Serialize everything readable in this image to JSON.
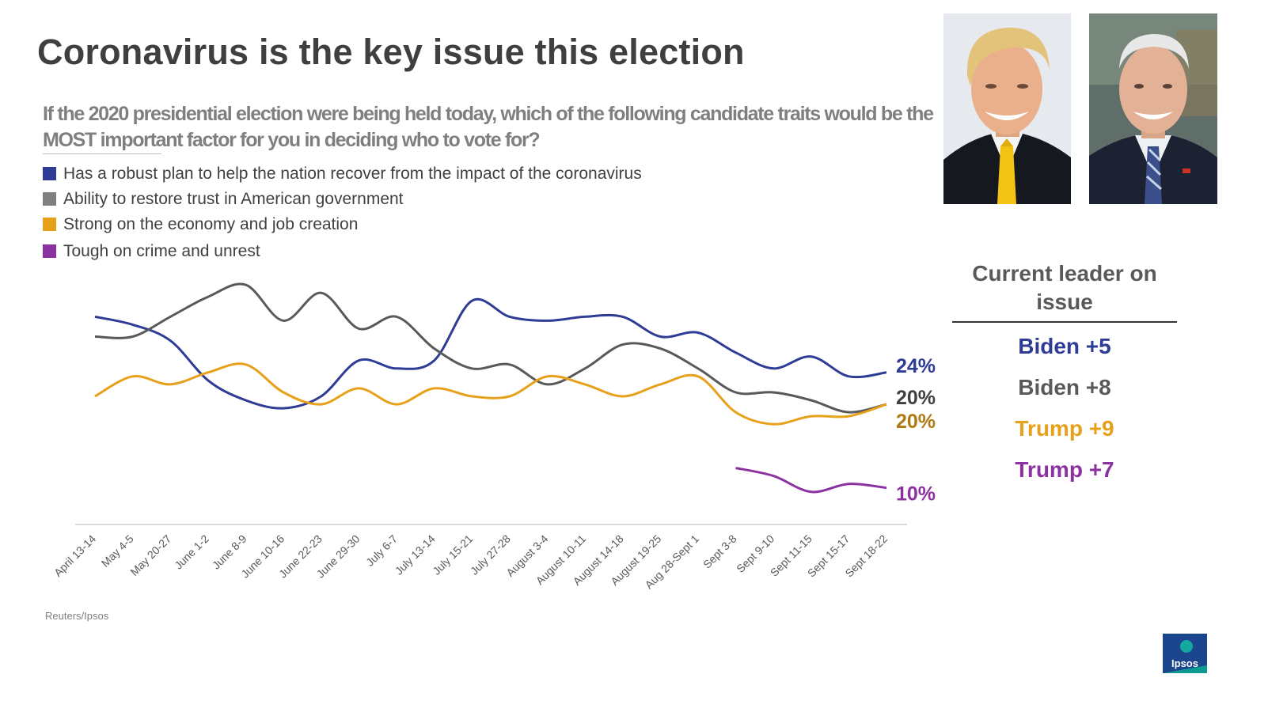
{
  "page": {
    "title": "Coronavirus is the key issue this election",
    "question": "If the 2020 presidential election were being held today, which of the following candidate traits would be the MOST important factor for you in deciding who to vote for?",
    "source": "Reuters/Ipsos",
    "logo_text": "Ipsos"
  },
  "legend": [
    {
      "label": "Has a robust plan to help the nation recover from the impact of the coronavirus",
      "color": "#2e3c96"
    },
    {
      "label": "Ability to restore trust in American government",
      "color": "#808080"
    },
    {
      "label": "Strong on the economy and job creation",
      "color": "#e6a019"
    },
    {
      "label": "Tough on crime and unrest",
      "color": "#8c32a0"
    }
  ],
  "leader_panel": {
    "heading": "Current leader on issue",
    "rows": [
      {
        "text": "Biden +5",
        "color": "#2e3c96"
      },
      {
        "text": "Biden +8",
        "color": "#595959"
      },
      {
        "text": "Trump +9",
        "color": "#e6a019"
      },
      {
        "text": "Trump +7",
        "color": "#8c32a0"
      }
    ]
  },
  "photos": [
    {
      "name": "trump-photo"
    },
    {
      "name": "biden-photo"
    }
  ],
  "chart_data": {
    "type": "line",
    "title": "If the 2020 presidential election were being held today, which of the following candidate traits would be the MOST important factor for you in deciding who to vote for?",
    "xlabel": "",
    "ylabel": "",
    "ylim": [
      5,
      37
    ],
    "grid": false,
    "categories": [
      "April 13-14",
      "May 4-5",
      "May 20-27",
      "June 1-2",
      "June 8-9",
      "June 10-16",
      "June 22-23",
      "June 29-30",
      "July 6-7",
      "July 13-14",
      "July 15-21",
      "July 27-28",
      "August 3-4",
      "August 10-11",
      "August 14-18",
      "August 19-25",
      "Aug 28-Sept 1",
      "Sept 3-8",
      "Sept 9-10",
      "Sept 11-15",
      "Sept 15-17",
      "Sept 18-22"
    ],
    "series": [
      {
        "name": "Has a robust plan to help the nation recover from the impact of the coronavirus",
        "color": "#2e3c96",
        "end_label": "24%",
        "label_color": "#2e3c96",
        "values": [
          31,
          30,
          28,
          23,
          20.5,
          19.5,
          21,
          25.5,
          24.5,
          25.5,
          33,
          31,
          30.5,
          31,
          31,
          28.5,
          29,
          26.5,
          24.5,
          26,
          23.5,
          24
        ]
      },
      {
        "name": "Ability to restore trust in American government",
        "color": "#595959",
        "end_label": "20%",
        "label_color": "#404040",
        "values": [
          28.5,
          28.5,
          31,
          33.5,
          35,
          30.5,
          34,
          29.5,
          31,
          27,
          24.5,
          25,
          22.5,
          24.5,
          27.5,
          27,
          24.5,
          21.5,
          21.5,
          20.5,
          19,
          20
        ]
      },
      {
        "name": "Strong on the economy and job creation",
        "color": "#e6a019",
        "end_label": "20%",
        "label_color": "#b07a10",
        "values": [
          21,
          23.5,
          22.5,
          24,
          25,
          21.5,
          20,
          22,
          20,
          22,
          21,
          21,
          23.5,
          22.5,
          21,
          22.5,
          23.5,
          19,
          17.5,
          18.5,
          18.5,
          20
        ]
      },
      {
        "name": "Tough on crime and unrest",
        "color": "#8c32a0",
        "end_label": "10%",
        "label_color": "#8c32a0",
        "values": [
          null,
          null,
          null,
          null,
          null,
          null,
          null,
          null,
          null,
          null,
          null,
          null,
          null,
          null,
          null,
          null,
          null,
          12,
          11,
          9,
          10,
          9.5
        ]
      }
    ]
  }
}
